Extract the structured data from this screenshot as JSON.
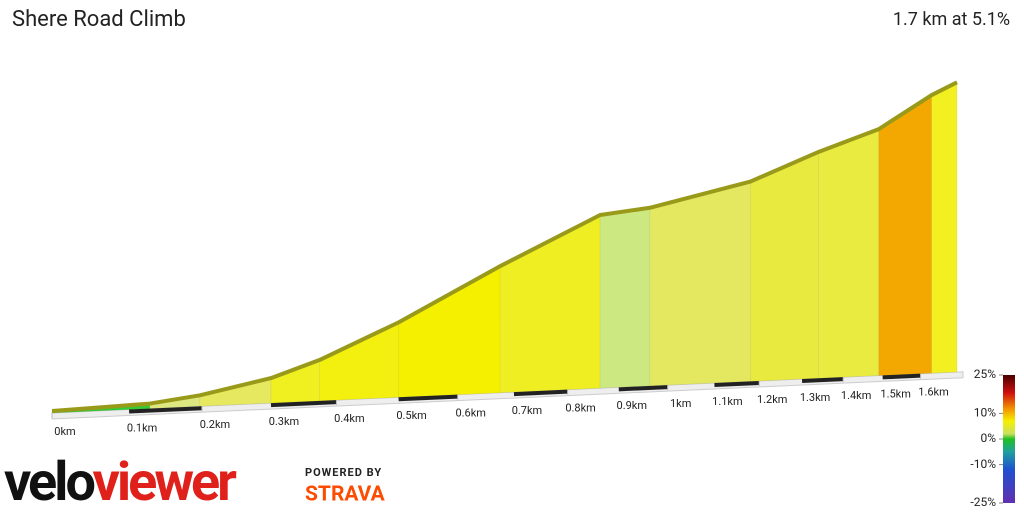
{
  "chart_data": {
    "type": "profile",
    "title": "Shere Road Climb",
    "subtitle": "1.7 km at 5.1%",
    "x": [
      0,
      0.128,
      0.197,
      0.3,
      0.374,
      0.5,
      0.675,
      0.863,
      0.963,
      1.18,
      1.34,
      1.49,
      1.63,
      1.7
    ],
    "values": [
      0.6,
      1.5,
      3.3,
      7.5,
      12.3,
      22.5,
      38,
      52,
      53.5,
      60,
      68,
      74,
      83.5,
      87
    ],
    "segment_colors": [
      "#33cc33",
      "#dde880",
      "#e6e860",
      "#f0ef20",
      "#f3f010",
      "#f5f000",
      "#eeee22",
      "#cce880",
      "#e3e860",
      "#e8ea40",
      "#e9eb40",
      "#f2a800",
      "#f2f020"
    ],
    "edge_color": "#9a9a1a",
    "xlim": [
      0,
      1.7
    ],
    "xticks": [
      {
        "value": 0,
        "label": "0km"
      },
      {
        "value": 0.1,
        "label": "0.1km"
      },
      {
        "value": 0.2,
        "label": "0.2km"
      },
      {
        "value": 0.3,
        "label": "0.3km"
      },
      {
        "value": 0.4,
        "label": "0.4km"
      },
      {
        "value": 0.5,
        "label": "0.5km"
      },
      {
        "value": 0.6,
        "label": "0.6km"
      },
      {
        "value": 0.7,
        "label": "0.7km"
      },
      {
        "value": 0.8,
        "label": "0.8km"
      },
      {
        "value": 0.9,
        "label": "0.9km"
      },
      {
        "value": 1,
        "label": "1km"
      },
      {
        "value": 1.1,
        "label": "1.1km"
      },
      {
        "value": 1.2,
        "label": "1.2km"
      },
      {
        "value": 1.3,
        "label": "1.3km"
      },
      {
        "value": 1.4,
        "label": "1.4km"
      },
      {
        "value": 1.5,
        "label": "1.5km"
      },
      {
        "value": 1.6,
        "label": "1.6km"
      }
    ],
    "colorbar": {
      "lim": [
        -25,
        25
      ],
      "ticks": [
        {
          "value": 25,
          "label": "25%"
        },
        {
          "value": 10,
          "label": "10%"
        },
        {
          "value": 0,
          "label": "0%"
        },
        {
          "value": -10,
          "label": "-10%"
        },
        {
          "value": -25,
          "label": "-25%"
        }
      ],
      "stops": [
        {
          "value": 25,
          "color": "#4a0000"
        },
        {
          "value": 18,
          "color": "#d01010"
        },
        {
          "value": 12,
          "color": "#f29000"
        },
        {
          "value": 7,
          "color": "#f5f000"
        },
        {
          "value": 2,
          "color": "#c8e060"
        },
        {
          "value": 0,
          "color": "#20c020"
        },
        {
          "value": -5,
          "color": "#20a0a0"
        },
        {
          "value": -12,
          "color": "#2050d0"
        },
        {
          "value": -25,
          "color": "#6030b0"
        }
      ]
    }
  },
  "branding": {
    "logo_a": "velo",
    "logo_b": "viewer",
    "powered": "POWERED BY",
    "strava": "STRAVA"
  }
}
